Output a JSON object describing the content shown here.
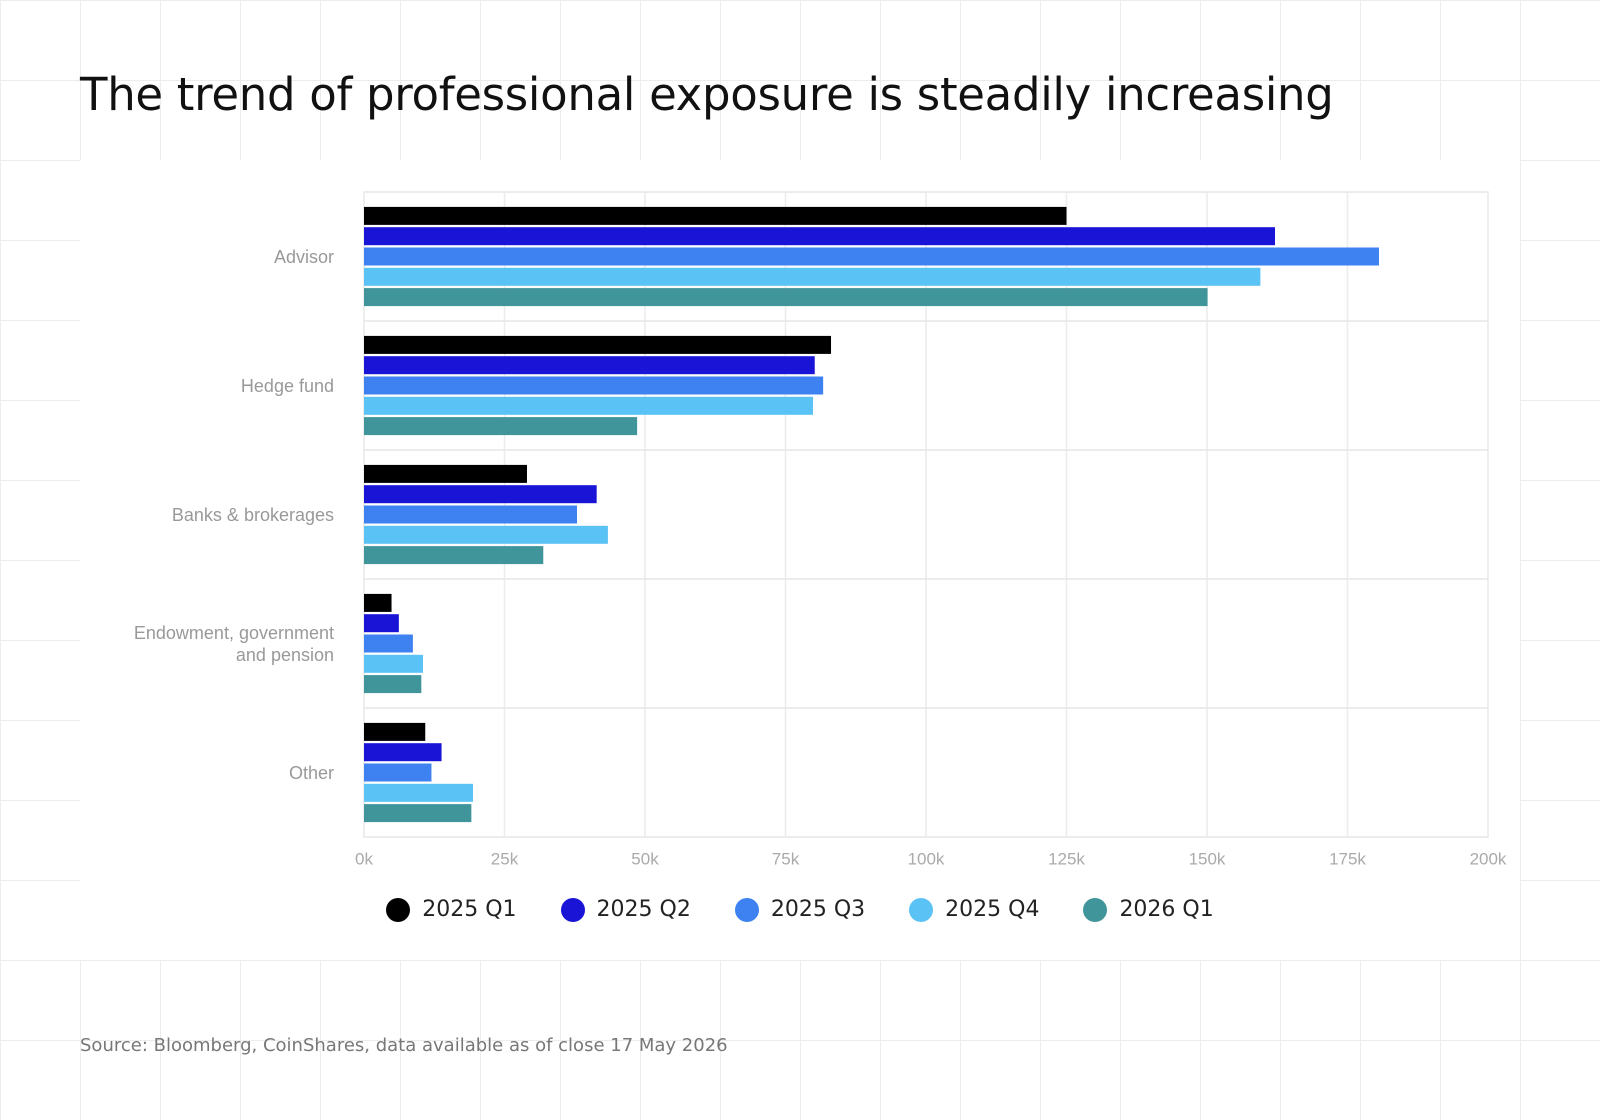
{
  "chart_data": {
    "type": "hbar",
    "title": "The trend of professional exposure is steadily increasing",
    "source": "Source: Bloomberg, CoinShares, data available as of close 17 May 2026",
    "categories": [
      "Advisor",
      "Hedge fund",
      "Banks & brokerages",
      "Endowment, government and pension",
      "Other"
    ],
    "series": [
      {
        "name": "2025 Q1",
        "color": "#000000",
        "values": [
          125000,
          83100,
          29000,
          4900,
          10900
        ]
      },
      {
        "name": "2025 Q2",
        "color": "#1a14d6",
        "values": [
          162100,
          80200,
          41400,
          6200,
          13800
        ]
      },
      {
        "name": "2025 Q3",
        "color": "#3d82f0",
        "values": [
          180600,
          81700,
          37900,
          8700,
          12000
        ]
      },
      {
        "name": "2025 Q4",
        "color": "#5bc2f5",
        "values": [
          159500,
          79900,
          43400,
          10500,
          19400
        ]
      },
      {
        "name": "2026 Q1",
        "color": "#40959a",
        "values": [
          150100,
          48600,
          31900,
          10200,
          19100
        ]
      }
    ],
    "xlim": [
      0,
      200000
    ],
    "xticks": [
      {
        "value": 0,
        "label": "0k"
      },
      {
        "value": 25000,
        "label": "25k"
      },
      {
        "value": 50000,
        "label": "50k"
      },
      {
        "value": 75000,
        "label": "75k"
      },
      {
        "value": 100000,
        "label": "100k"
      },
      {
        "value": 125000,
        "label": "125k"
      },
      {
        "value": 150000,
        "label": "150k"
      },
      {
        "value": 175000,
        "label": "175k"
      },
      {
        "value": 200000,
        "label": "200k"
      }
    ],
    "grid": true,
    "legend": "bottom"
  }
}
